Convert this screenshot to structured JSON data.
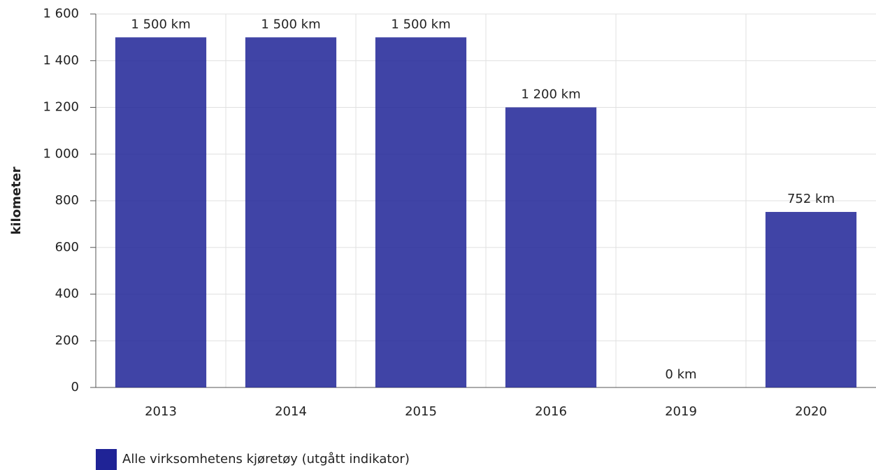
{
  "chart_data": {
    "type": "bar",
    "y_axis_label": "kilometer",
    "categories": [
      "2013",
      "2014",
      "2015",
      "2016",
      "2019",
      "2020"
    ],
    "series": [
      {
        "name": "Alle virksomhetens kjøretøy (utgått indikator)",
        "color": "#1f2396",
        "values": [
          1500,
          1500,
          1500,
          1200,
          0,
          752
        ],
        "value_labels": [
          "1 500 km",
          "1 500 km",
          "1 500 km",
          "1 200 km",
          "0 km",
          "752 km"
        ]
      }
    ],
    "ylim": [
      0,
      1600
    ],
    "yticks": [
      0,
      200,
      400,
      600,
      800,
      {
        "value": 1000,
        "label": "1 000"
      },
      {
        "value": 1200,
        "label": "1 200"
      },
      {
        "value": 1400,
        "label": "1 400"
      },
      {
        "value": 1600,
        "label": "1 600"
      }
    ],
    "grid": true,
    "legend": "bottom-left"
  }
}
